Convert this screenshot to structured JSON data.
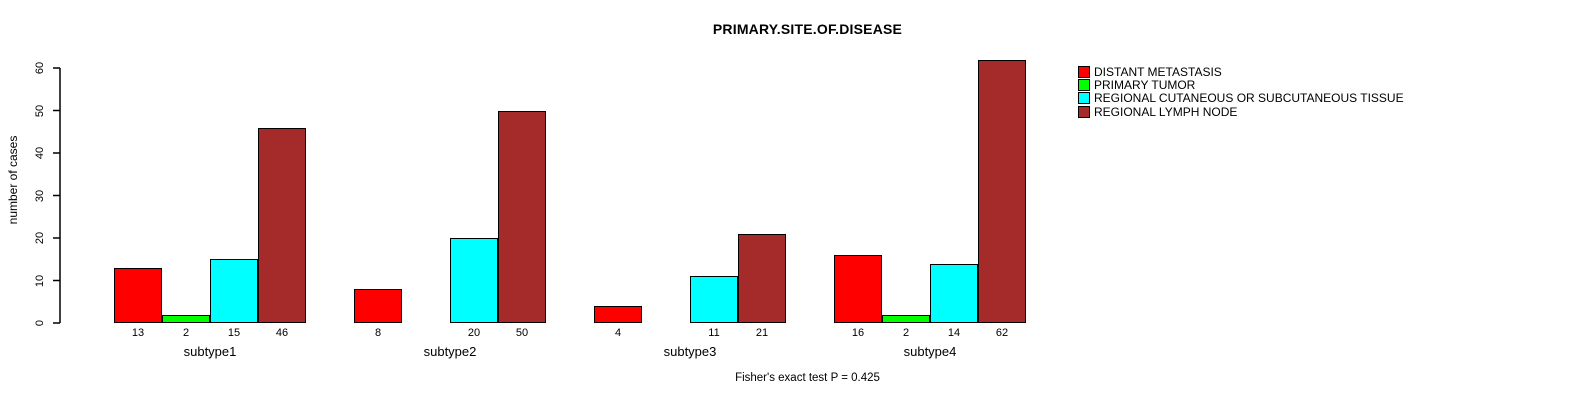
{
  "chart_data": {
    "type": "bar",
    "title": "PRIMARY.SITE.OF.DISEASE",
    "ylabel": "number of cases",
    "xlabel": "",
    "ylim": [
      0,
      60
    ],
    "yticks": [
      0,
      10,
      20,
      30,
      40,
      50,
      60
    ],
    "grid": false,
    "legend_position": "top-right",
    "categories": [
      "subtype1",
      "subtype2",
      "subtype3",
      "subtype4"
    ],
    "series": [
      {
        "name": "DISTANT METASTASIS",
        "color": "#FF0000",
        "values": [
          13,
          8,
          4,
          16
        ]
      },
      {
        "name": "PRIMARY TUMOR",
        "color": "#00FF00",
        "values": [
          2,
          0,
          0,
          2
        ]
      },
      {
        "name": "REGIONAL CUTANEOUS OR SUBCUTANEOUS TISSUE",
        "color": "#00FFFF",
        "values": [
          15,
          20,
          11,
          14
        ]
      },
      {
        "name": "REGIONAL LYMPH NODE",
        "color": "#A52A2A",
        "values": [
          46,
          50,
          21,
          62
        ]
      }
    ],
    "bar_value_labels": {
      "show": true,
      "hide_zero": true
    },
    "footer": "Fisher's exact test P = 0.425"
  },
  "colors": {
    "background": "#FFFFFF",
    "axis": "#000000",
    "text": "#000000"
  }
}
